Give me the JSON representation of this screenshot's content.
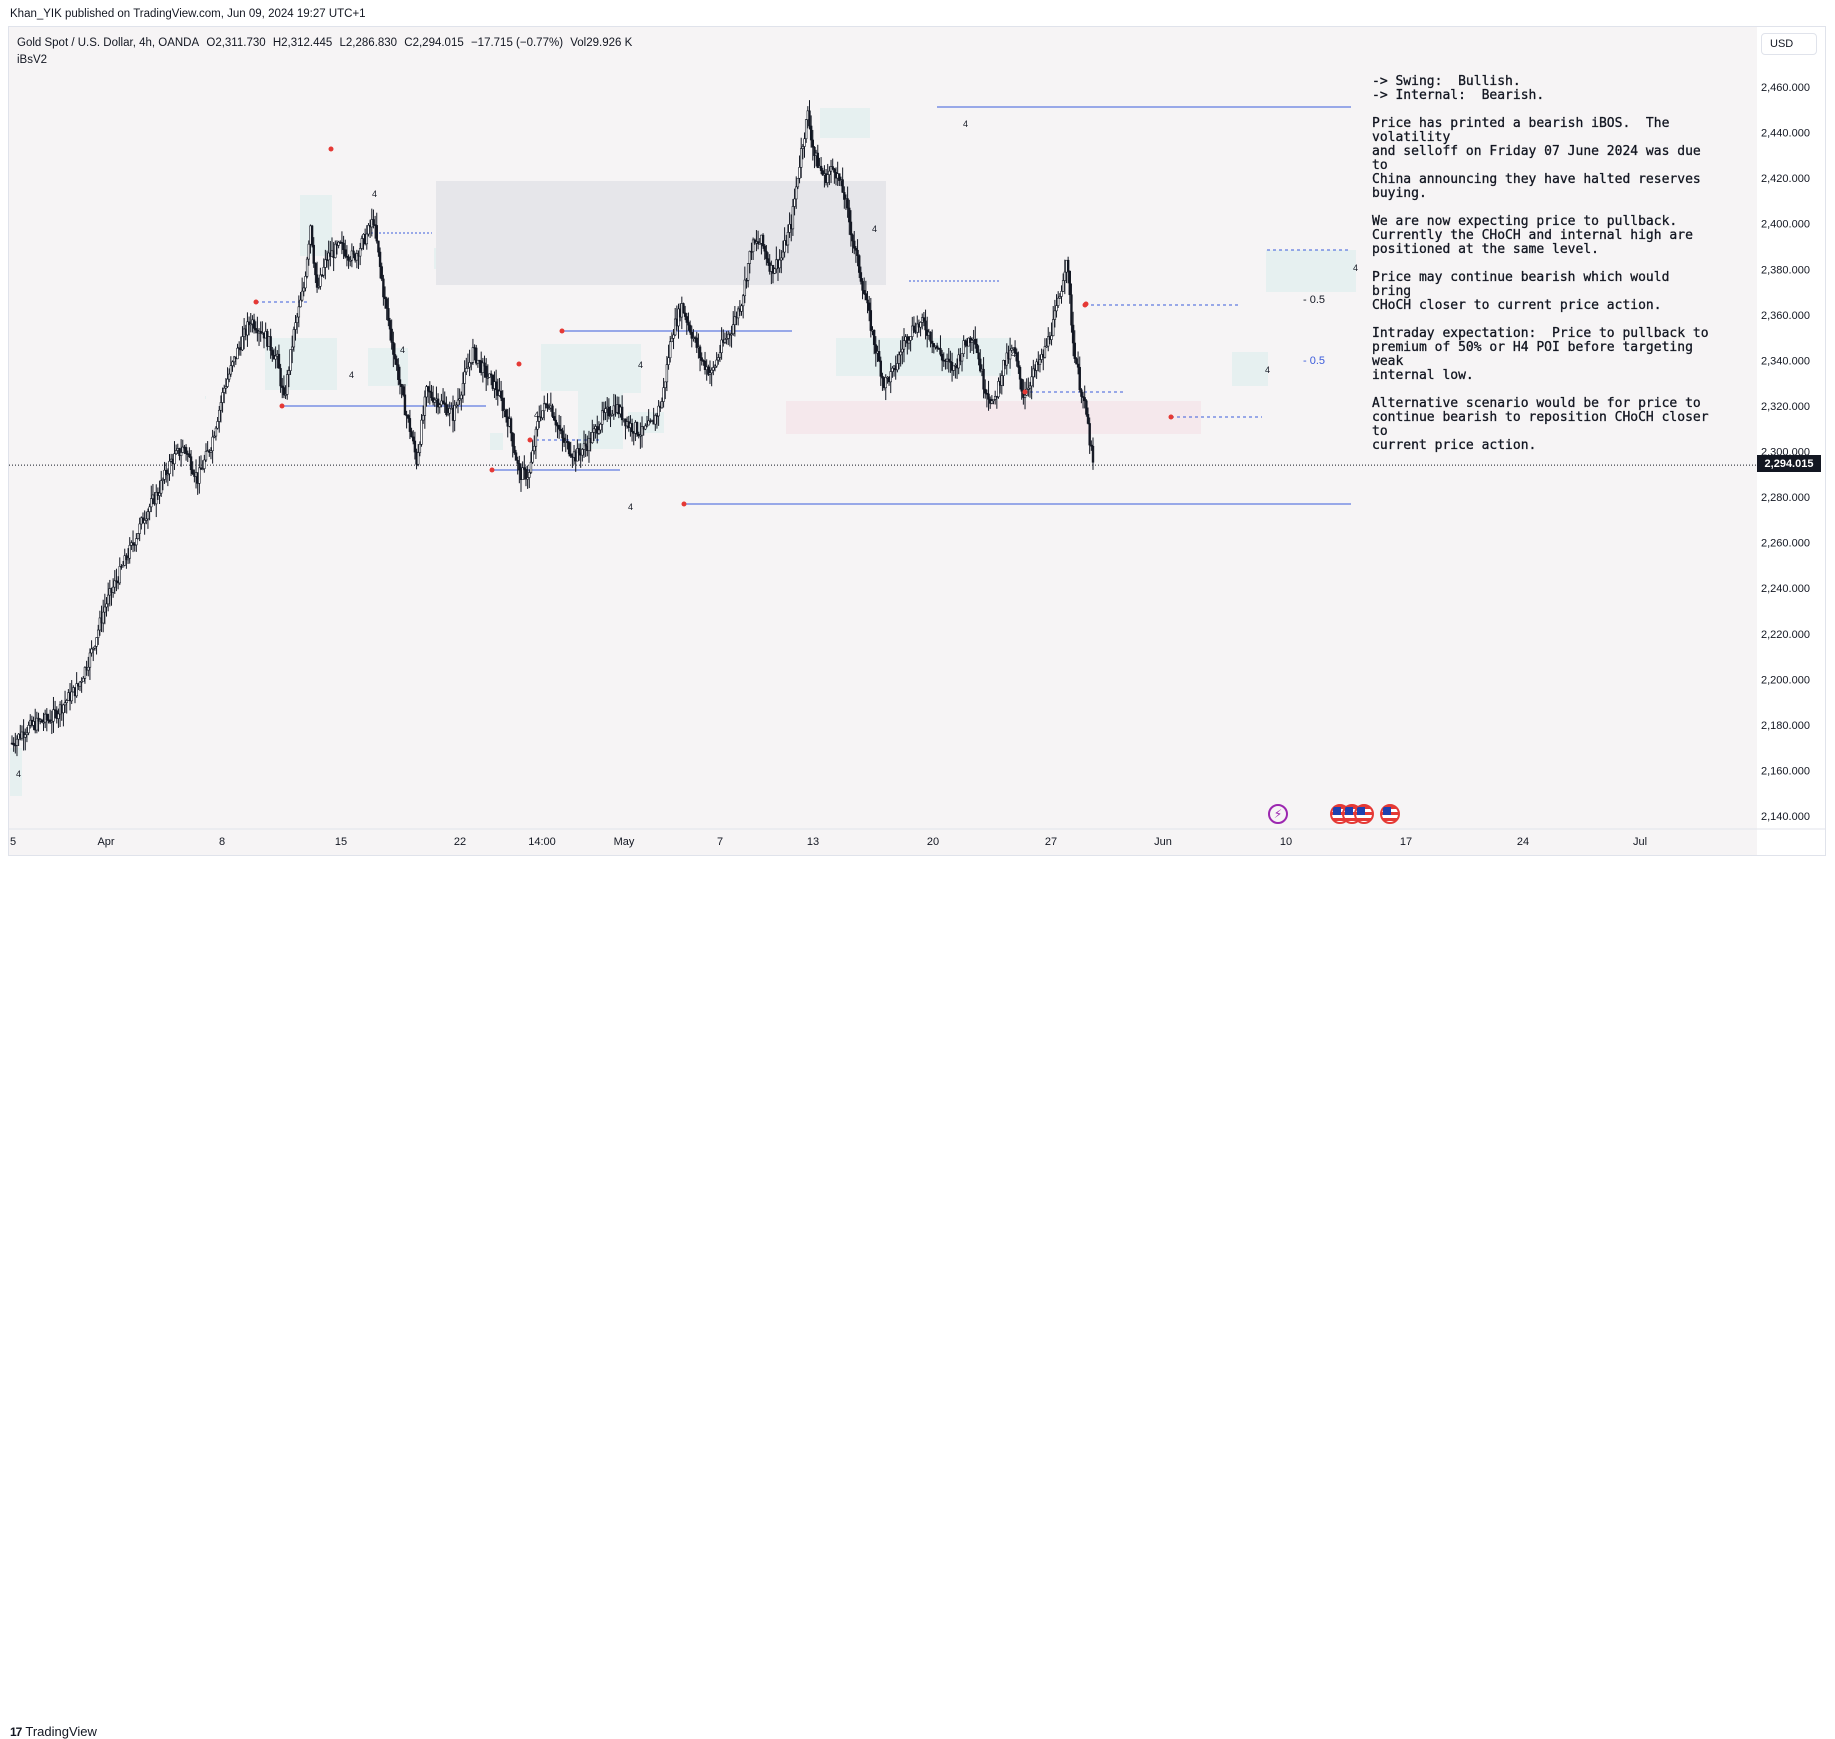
{
  "header": {
    "publisher": "Khan_YIK published on TradingView.com, Jun 09, 2024 19:27 UTC+1"
  },
  "legend": {
    "symbol": "Gold Spot / U.S. Dollar, 4h, OANDA",
    "open": "O2,311.730",
    "high": "H2,312.445",
    "low": "L2,286.830",
    "close": "C2,294.015",
    "change": "−17.715 (−0.77%)",
    "volatility": "Vol29.926 K",
    "indicator": "iBsV2"
  },
  "currency": "USD",
  "last_price": "2,294.015",
  "footer": {
    "brand": "TradingView",
    "logo_mark": "17"
  },
  "icons": {
    "event": "lightning-icon",
    "flags": [
      "us-flag-icon",
      "us-flag-icon",
      "us-flag-icon",
      "us-flag-icon"
    ]
  },
  "annotation": {
    "p1": "-> Swing:  Bullish.\n-> Internal:  Bearish.",
    "p2": "Price has printed a bearish iBOS.  The volatility\nand selloff on Friday 07 June 2024 was due to\nChina announcing they have halted reserves\nbuying.",
    "p3": "We are now expecting price to pullback.\nCurrently the CHoCH and internal high are\npositioned at the same level.",
    "p4": "Price may continue bearish which would bring\nCHoCH closer to current price action.",
    "p5": "Intraday expectation:  Price to pullback to\npremium of 50% or H4 POI before targeting weak\ninternal low.",
    "p6": "Alternative scenario would be for price to\ncontinue bearish to reposition CHoCH closer to\ncurrent price action."
  },
  "chart_data": {
    "type": "candlestick",
    "title": "Gold Spot / U.S. Dollar, 4h, OANDA",
    "ylim": [
      2130,
      2475
    ],
    "y_ticks": [
      2140,
      2160,
      2180,
      2200,
      2220,
      2240,
      2260,
      2280,
      2300,
      2320,
      2340,
      2360,
      2380,
      2400,
      2420,
      2440,
      2460
    ],
    "y_tick_labels": [
      "2,140.000",
      "2,160.000",
      "2,180.000",
      "2,200.000",
      "2,220.000",
      "2,240.000",
      "2,260.000",
      "2,280.000",
      "2,300.000",
      "2,320.000",
      "2,340.000",
      "2,360.000",
      "2,380.000",
      "2,400.000",
      "2,420.000",
      "2,440.000",
      "2,460.000"
    ],
    "x_labels": [
      "5",
      "Apr",
      "8",
      "15",
      "22",
      "14:00",
      "May",
      "7",
      "13",
      "20",
      "27",
      "Jun",
      "10",
      "17",
      "24",
      "Jul"
    ],
    "bars_visible": 545,
    "close_path": [
      [
        0,
        2172
      ],
      [
        8,
        2178
      ],
      [
        16,
        2181
      ],
      [
        24,
        2183
      ],
      [
        32,
        2190
      ],
      [
        40,
        2197
      ],
      [
        48,
        2212
      ],
      [
        56,
        2232
      ],
      [
        64,
        2245
      ],
      [
        72,
        2258
      ],
      [
        80,
        2272
      ],
      [
        88,
        2282
      ],
      [
        96,
        2296
      ],
      [
        104,
        2302
      ],
      [
        112,
        2288
      ],
      [
        120,
        2303
      ],
      [
        128,
        2328
      ],
      [
        136,
        2344
      ],
      [
        144,
        2358
      ],
      [
        152,
        2352
      ],
      [
        160,
        2340
      ],
      [
        164,
        2322
      ],
      [
        170,
        2352
      ],
      [
        176,
        2372
      ],
      [
        180,
        2400
      ],
      [
        184,
        2370
      ],
      [
        190,
        2385
      ],
      [
        198,
        2390
      ],
      [
        206,
        2385
      ],
      [
        214,
        2395
      ],
      [
        218,
        2402
      ],
      [
        224,
        2370
      ],
      [
        230,
        2345
      ],
      [
        236,
        2322
      ],
      [
        240,
        2310
      ],
      [
        244,
        2296
      ],
      [
        250,
        2326
      ],
      [
        258,
        2322
      ],
      [
        266,
        2316
      ],
      [
        272,
        2330
      ],
      [
        278,
        2344
      ],
      [
        284,
        2336
      ],
      [
        292,
        2328
      ],
      [
        300,
        2312
      ],
      [
        306,
        2290
      ],
      [
        312,
        2290
      ],
      [
        318,
        2316
      ],
      [
        324,
        2322
      ],
      [
        332,
        2305
      ],
      [
        340,
        2298
      ],
      [
        348,
        2304
      ],
      [
        356,
        2315
      ],
      [
        364,
        2320
      ],
      [
        372,
        2312
      ],
      [
        380,
        2308
      ],
      [
        386,
        2312
      ],
      [
        392,
        2322
      ],
      [
        398,
        2352
      ],
      [
        404,
        2364
      ],
      [
        410,
        2352
      ],
      [
        416,
        2340
      ],
      [
        422,
        2334
      ],
      [
        428,
        2346
      ],
      [
        434,
        2354
      ],
      [
        440,
        2366
      ],
      [
        446,
        2390
      ],
      [
        452,
        2392
      ],
      [
        458,
        2380
      ],
      [
        464,
        2385
      ],
      [
        470,
        2400
      ],
      [
        476,
        2432
      ],
      [
        480,
        2448
      ],
      [
        484,
        2430
      ],
      [
        490,
        2420
      ],
      [
        496,
        2425
      ],
      [
        502,
        2412
      ],
      [
        508,
        2390
      ],
      [
        514,
        2370
      ],
      [
        520,
        2348
      ],
      [
        526,
        2330
      ],
      [
        532,
        2335
      ],
      [
        538,
        2348
      ],
      [
        544,
        2355
      ],
      [
        550,
        2356
      ],
      [
        556,
        2348
      ],
      [
        562,
        2340
      ],
      [
        568,
        2336
      ],
      [
        574,
        2346
      ],
      [
        580,
        2352
      ],
      [
        586,
        2330
      ],
      [
        592,
        2320
      ],
      [
        598,
        2338
      ],
      [
        604,
        2345
      ],
      [
        610,
        2325
      ],
      [
        616,
        2334
      ],
      [
        622,
        2342
      ],
      [
        628,
        2356
      ],
      [
        632,
        2368
      ],
      [
        636,
        2386
      ],
      [
        640,
        2348
      ],
      [
        644,
        2330
      ],
      [
        648,
        2316
      ],
      [
        652,
        2294
      ]
    ],
    "levels": [
      {
        "label": "swing high",
        "price": 2450
      },
      {
        "label": "weak low",
        "price": 2277
      },
      {
        "label": "current price",
        "price": 2294.015
      }
    ],
    "fib_labels": [
      "0.5",
      "0.5"
    ],
    "zone_count_label": "4"
  }
}
